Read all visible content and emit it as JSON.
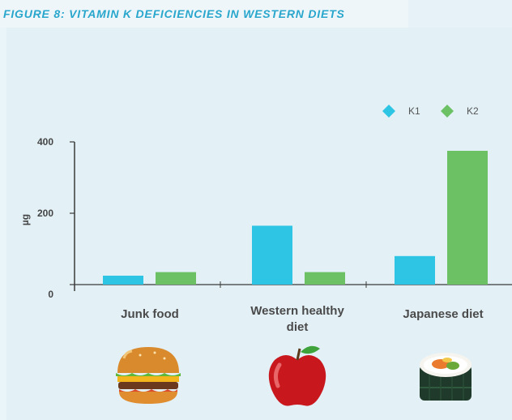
{
  "figure_title": "FIGURE 8: VITAMIN K DEFICIENCIES IN WESTERN DIETS",
  "chart_data": {
    "type": "bar",
    "title": "FIGURE 8: VITAMIN K DEFICIENCIES IN WESTERN DIETS",
    "categories": [
      "Junk food",
      "Western healthy diet",
      "Japanese diet"
    ],
    "category_lines": [
      [
        "Junk food"
      ],
      [
        "Western healthy",
        "diet"
      ],
      [
        "Japanese diet"
      ]
    ],
    "series": [
      {
        "name": "K1",
        "color": "#2ec4e4",
        "values": [
          25,
          165,
          80
        ]
      },
      {
        "name": "K2",
        "color": "#6cc165",
        "values": [
          35,
          35,
          375
        ]
      }
    ],
    "ylabel": "µg",
    "yticks": [
      "0",
      "200",
      "400"
    ],
    "ytick_values": [
      0,
      200,
      400
    ],
    "ylim": [
      0,
      400
    ],
    "legend_position": "top-right"
  },
  "icons": [
    "burger-icon",
    "apple-icon",
    "sushi-icon"
  ]
}
